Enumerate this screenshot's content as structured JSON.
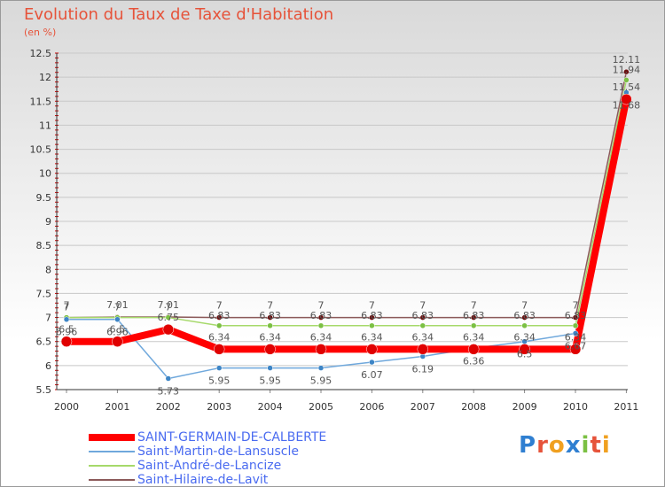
{
  "title": "Evolution du Taux de Taxe d'Habitation",
  "unit_label": "(en %)",
  "logo_text": "Proxiti",
  "colors": {
    "accent": "#e6533a",
    "grid": "#c8c8c8"
  },
  "chart_data": {
    "type": "line",
    "x": [
      "2000",
      "2001",
      "2002",
      "2003",
      "2004",
      "2005",
      "2006",
      "2007",
      "2008",
      "2009",
      "2010",
      "2011"
    ],
    "ylim": [
      5.5,
      12.5
    ],
    "yticks": [
      "5.5",
      "6",
      "6.5",
      "7",
      "7.5",
      "8",
      "8.5",
      "9",
      "9.5",
      "10",
      "10.5",
      "11",
      "11.5",
      "12",
      "12.5"
    ],
    "series": [
      {
        "name": "SAINT-GERMAIN-DE-CALBERTE",
        "color": "#ff0000",
        "width": 8,
        "marker_color": "#e00000",
        "marker_r": 6,
        "values": [
          6.5,
          6.5,
          6.75,
          6.34,
          6.34,
          6.34,
          6.34,
          6.34,
          6.34,
          6.34,
          6.34,
          11.54
        ],
        "labels": [
          "6.5",
          "6.5",
          "6.75",
          "6.34",
          "6.34",
          "6.34",
          "6.34",
          "6.34",
          "6.34",
          "6.34",
          "6.34",
          "11.54"
        ]
      },
      {
        "name": "Saint-Martin-de-Lansuscle",
        "color": "#6fa8dc",
        "width": 1.5,
        "marker_color": "#3d85c6",
        "marker_r": 3,
        "values": [
          6.96,
          6.96,
          5.73,
          5.95,
          5.95,
          5.95,
          6.07,
          6.19,
          6.36,
          6.5,
          6.67,
          11.68
        ],
        "labels": [
          "6.96",
          "6.96",
          "5.73",
          "5.95",
          "5.95",
          "5.95",
          "6.07",
          "6.19",
          "6.36",
          "6.5",
          "6.67",
          "11.68"
        ]
      },
      {
        "name": "Saint-André-de-Lancize",
        "color": "#a6d96a",
        "width": 1.5,
        "marker_color": "#7bc043",
        "marker_r": 3,
        "values": [
          7,
          7,
          7,
          6.83,
          6.83,
          6.83,
          6.83,
          6.83,
          6.83,
          6.83,
          6.83,
          11.94
        ],
        "labels": [
          "7",
          "7",
          "7",
          "6.83",
          "6.83",
          "6.83",
          "6.83",
          "6.83",
          "6.83",
          "6.83",
          "6.83",
          "11.94"
        ]
      },
      {
        "name": "Saint-Hilaire-de-Lavit",
        "color": "#8c5a5a",
        "width": 1.5,
        "marker_color": "#6b0f0f",
        "marker_r": 3,
        "values": [
          7,
          7.01,
          7.01,
          7,
          7,
          7,
          7,
          7,
          7,
          7,
          7,
          12.11
        ],
        "labels": [
          "7",
          "7.01",
          "7.01",
          "7",
          "7",
          "7",
          "7",
          "7",
          "7",
          "7",
          "7",
          "12.11"
        ]
      }
    ]
  }
}
